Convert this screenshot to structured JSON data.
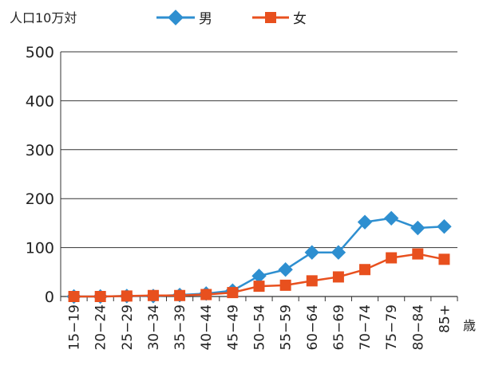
{
  "chart_data": {
    "type": "line",
    "ylabel": "人口10万対",
    "xunit": "歳",
    "ylim": [
      0,
      500
    ],
    "yticks": [
      0,
      100,
      200,
      300,
      400,
      500
    ],
    "grid": true,
    "legend_position": "top-center",
    "categories": [
      "15−19",
      "20−24",
      "25−29",
      "30−34",
      "35−39",
      "40−44",
      "45−49",
      "50−54",
      "55−59",
      "60−64",
      "65−69",
      "70−74",
      "75−79",
      "80−84",
      "85+"
    ],
    "series": [
      {
        "name": "男",
        "color": "#2e8fd0",
        "marker": "diamond",
        "values": [
          0,
          0,
          1,
          1,
          3,
          6,
          12,
          42,
          55,
          90,
          90,
          152,
          160,
          140,
          143
        ]
      },
      {
        "name": "女",
        "color": "#e8501e",
        "marker": "square",
        "values": [
          0,
          0,
          1,
          2,
          2,
          4,
          8,
          21,
          23,
          32,
          40,
          55,
          79,
          87,
          76
        ]
      }
    ]
  }
}
